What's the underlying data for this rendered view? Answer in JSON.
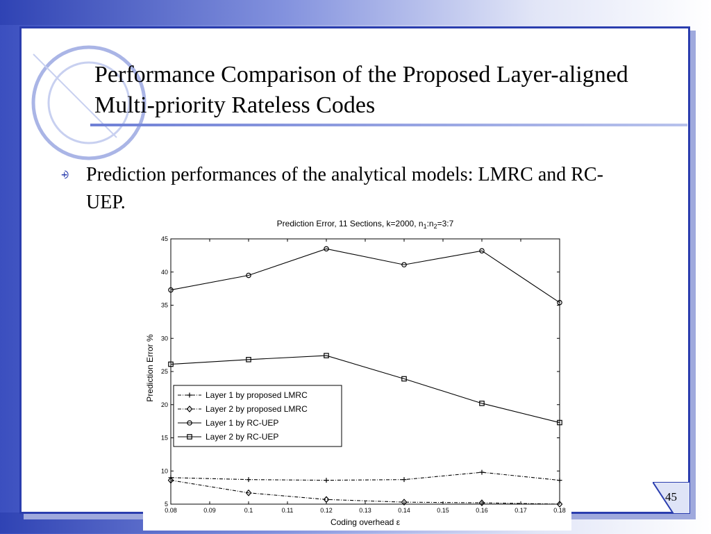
{
  "slide": {
    "title": "Performance Comparison of the Proposed Layer-aligned Multi-priority Rateless Codes",
    "bullet_text": "Prediction performances of the analytical models: LMRC and RC-UEP.",
    "slide_number": "45"
  },
  "colors": {
    "frame_border": "#2a3dae",
    "band_start": "#2f43b4",
    "band_end": "#ffffff"
  },
  "chart_data": {
    "type": "line",
    "title": "Prediction Error, 11 Sections, k=2000, n",
    "title_sub1": "1",
    "title_mid": ":n",
    "title_sub2": "2",
    "title_tail": "=3:7",
    "xlabel": "Coding overhead ε",
    "ylabel": "Prediction Error %",
    "xlim": [
      0.08,
      0.18
    ],
    "ylim": [
      5,
      45
    ],
    "x_ticks": [
      "0.08",
      "0.09",
      "0.1",
      "0.11",
      "0.12",
      "0.13",
      "0.14",
      "0.15",
      "0.16",
      "0.17",
      "0.18"
    ],
    "y_ticks": [
      "5",
      "10",
      "15",
      "20",
      "25",
      "30",
      "35",
      "40",
      "45"
    ],
    "x": [
      0.08,
      0.1,
      0.12,
      0.14,
      0.16,
      0.18
    ],
    "legend_position": "center-left",
    "series": [
      {
        "name": "Layer 1 by proposed LMRC",
        "marker": "plus",
        "line": "dashdot",
        "values": [
          9.0,
          8.7,
          8.6,
          8.7,
          9.8,
          8.6
        ]
      },
      {
        "name": "Layer 2 by proposed LMRC",
        "marker": "diamond",
        "line": "dashdot",
        "values": [
          8.6,
          6.7,
          5.7,
          5.3,
          5.2,
          5.0
        ]
      },
      {
        "name": "Layer 1 by RC-UEP",
        "marker": "circle",
        "line": "solid",
        "values": [
          37.3,
          39.5,
          43.5,
          41.1,
          43.2,
          35.4
        ]
      },
      {
        "name": "Layer 2 by RC-UEP",
        "marker": "square",
        "line": "solid",
        "values": [
          26.1,
          26.8,
          27.4,
          23.9,
          20.2,
          17.3
        ]
      }
    ]
  }
}
